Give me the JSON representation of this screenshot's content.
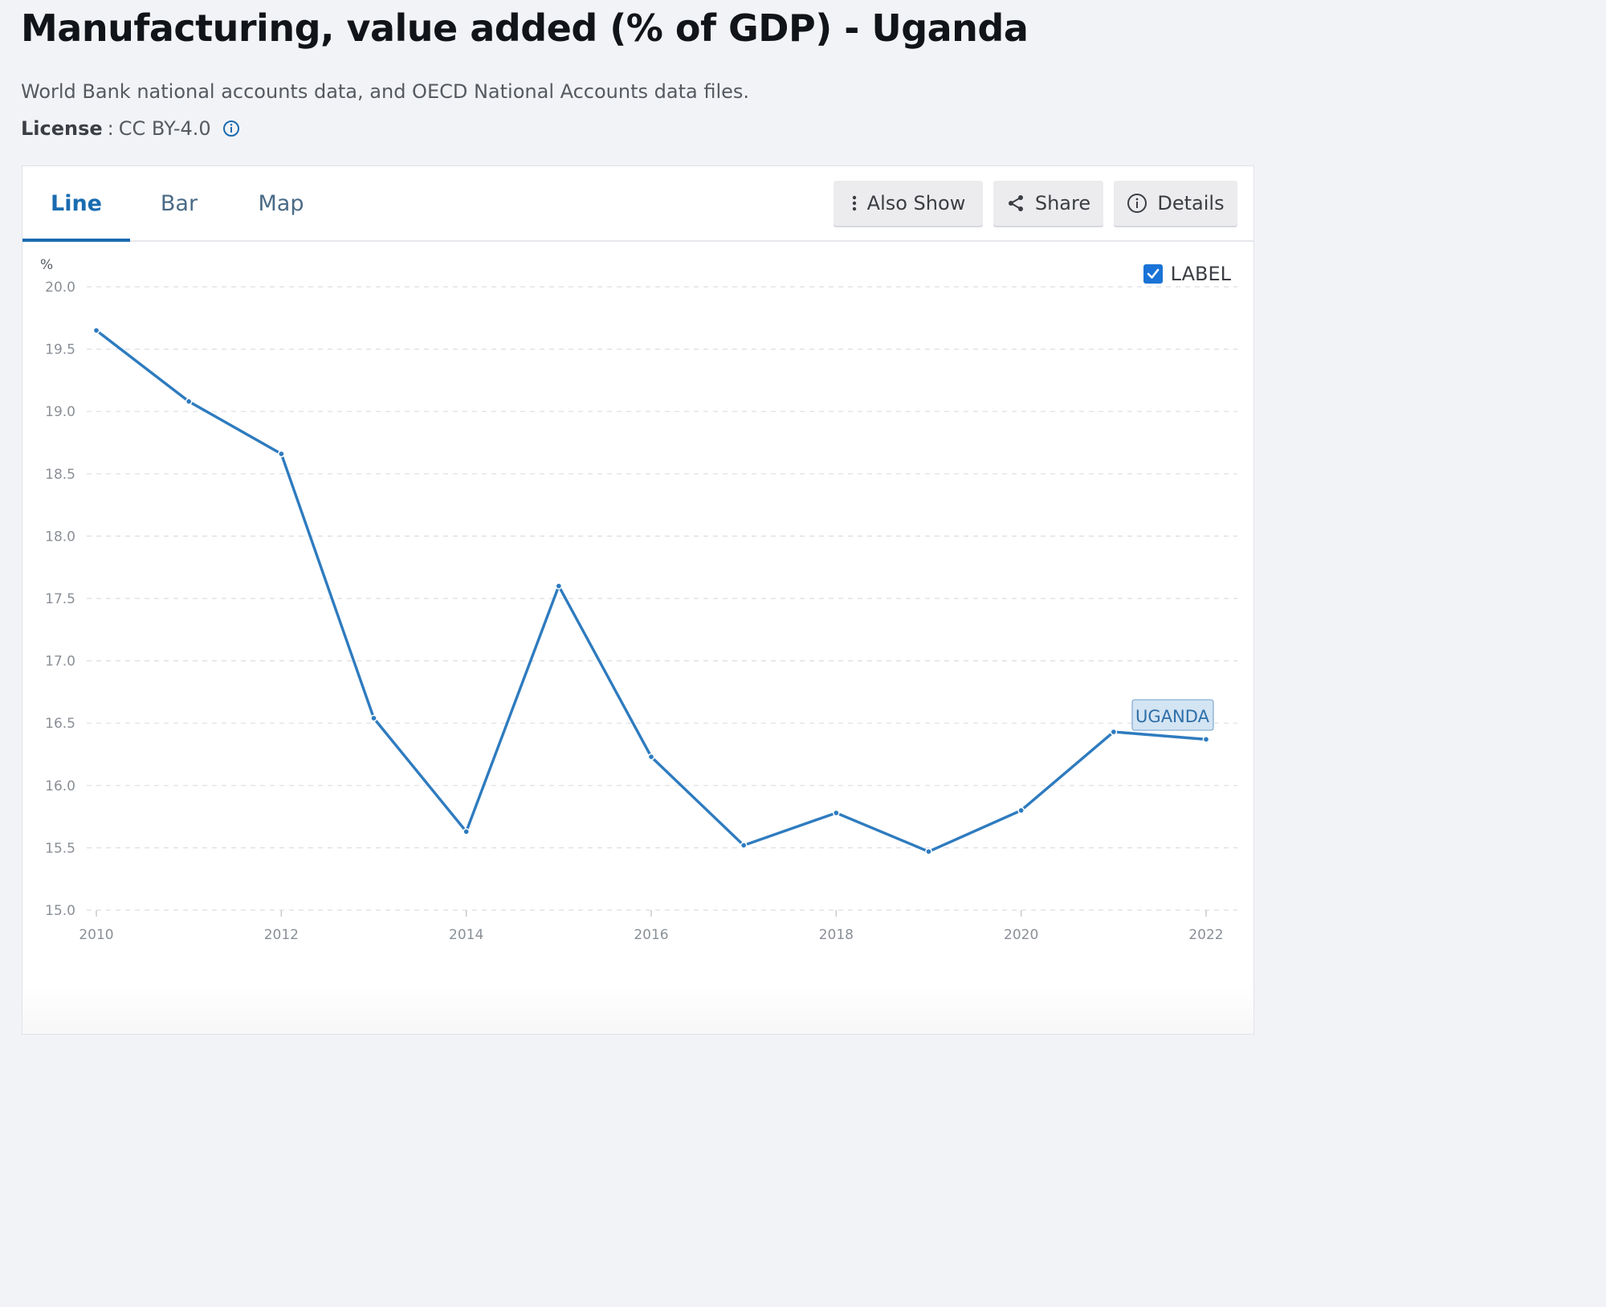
{
  "page": {
    "title": "Manufacturing, value added (% of GDP) - Uganda",
    "source": "World Bank national accounts data, and OECD National Accounts data files.",
    "license_key": "License",
    "license_sep": ":",
    "license_value": "CC BY-4.0"
  },
  "tabs": [
    {
      "label": "Line",
      "active": true
    },
    {
      "label": "Bar",
      "active": false
    },
    {
      "label": "Map",
      "active": false
    }
  ],
  "toolbar": {
    "also_show_label": "Also Show",
    "share_label": "Share",
    "details_label": "Details"
  },
  "label_toggle": {
    "text": "LABEL",
    "checked": true
  },
  "colors": {
    "accent": "#1a6bb0",
    "series": "#2e7bbf",
    "checkbox": "#1a73d6"
  },
  "chart_data": {
    "type": "line",
    "ylabel": "%",
    "ylim": [
      15.0,
      20.0
    ],
    "y_ticks": [
      "15.0",
      "15.5",
      "16.0",
      "16.5",
      "17.0",
      "17.5",
      "18.0",
      "18.5",
      "19.0",
      "19.5",
      "20.0"
    ],
    "x_ticks": [
      "2010",
      "2012",
      "2014",
      "2016",
      "2018",
      "2020",
      "2022"
    ],
    "xlim": [
      2010,
      2022
    ],
    "grid": true,
    "series": [
      {
        "name": "UGANDA",
        "x": [
          2010,
          2011,
          2012,
          2013,
          2014,
          2015,
          2016,
          2017,
          2018,
          2019,
          2020,
          2021,
          2022
        ],
        "values": [
          19.65,
          19.08,
          18.66,
          16.54,
          15.63,
          17.6,
          16.23,
          15.52,
          15.78,
          15.47,
          15.8,
          16.43,
          16.37
        ]
      }
    ]
  }
}
